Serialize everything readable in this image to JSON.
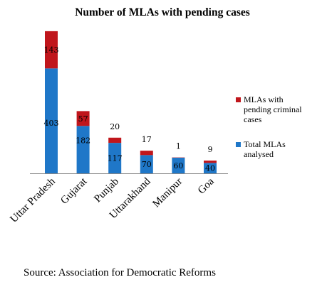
{
  "chart_data": {
    "type": "bar",
    "stacked": true,
    "title": "Number  of MLAs with  pending cases",
    "categories": [
      "Uttar Pradesh",
      "Gujarat",
      "Punjab",
      "Uttarakhand",
      "Manipur",
      "Goa"
    ],
    "series": [
      {
        "name": "Total MLAs analysed",
        "color": "#1f77c8",
        "values": [
          403,
          182,
          117,
          70,
          60,
          40
        ]
      },
      {
        "name": "MLAs with pending criminal cases",
        "color": "#c0161c",
        "values": [
          143,
          57,
          20,
          17,
          1,
          9
        ]
      }
    ],
    "legend_position": "right",
    "grid": false
  },
  "source": "Source: Association for Democratic Reforms"
}
